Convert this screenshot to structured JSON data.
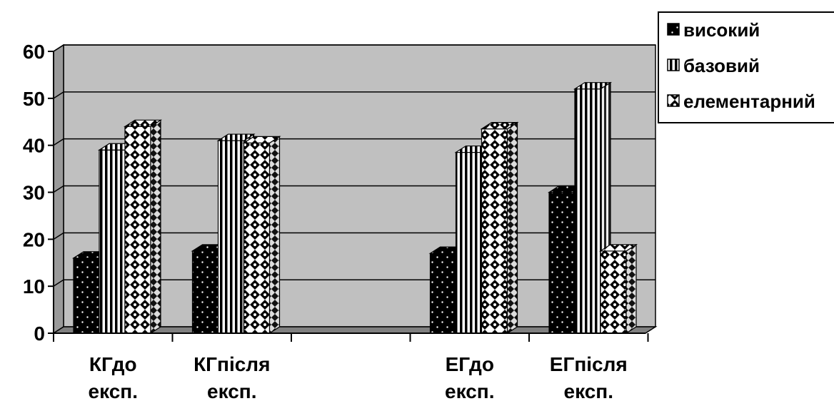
{
  "chart_data": {
    "type": "bar",
    "categories": [
      [
        "КГдо",
        "експ."
      ],
      [
        "КГпісля",
        "експ."
      ],
      [
        "",
        ""
      ],
      [
        "ЕГдо",
        "експ."
      ],
      [
        "ЕГпісля",
        "експ."
      ]
    ],
    "series": [
      {
        "name": "високий",
        "values": [
          16,
          17.5,
          null,
          17,
          30
        ],
        "pattern": "dots"
      },
      {
        "name": "базовий",
        "values": [
          39,
          41,
          null,
          38.5,
          52
        ],
        "pattern": "vstripes"
      },
      {
        "name": "елементарний",
        "values": [
          44,
          40.5,
          null,
          43.5,
          17.5
        ],
        "pattern": "diamonds"
      }
    ],
    "ylim": [
      0,
      60
    ],
    "yticks": [
      0,
      10,
      20,
      30,
      40,
      50,
      60
    ],
    "grid": true,
    "legend": "right",
    "title": "",
    "xlabel": "",
    "ylabel": "",
    "colors": {
      "wall": "#c0c0c0",
      "floor": "#808080",
      "frame": "#000000"
    }
  }
}
